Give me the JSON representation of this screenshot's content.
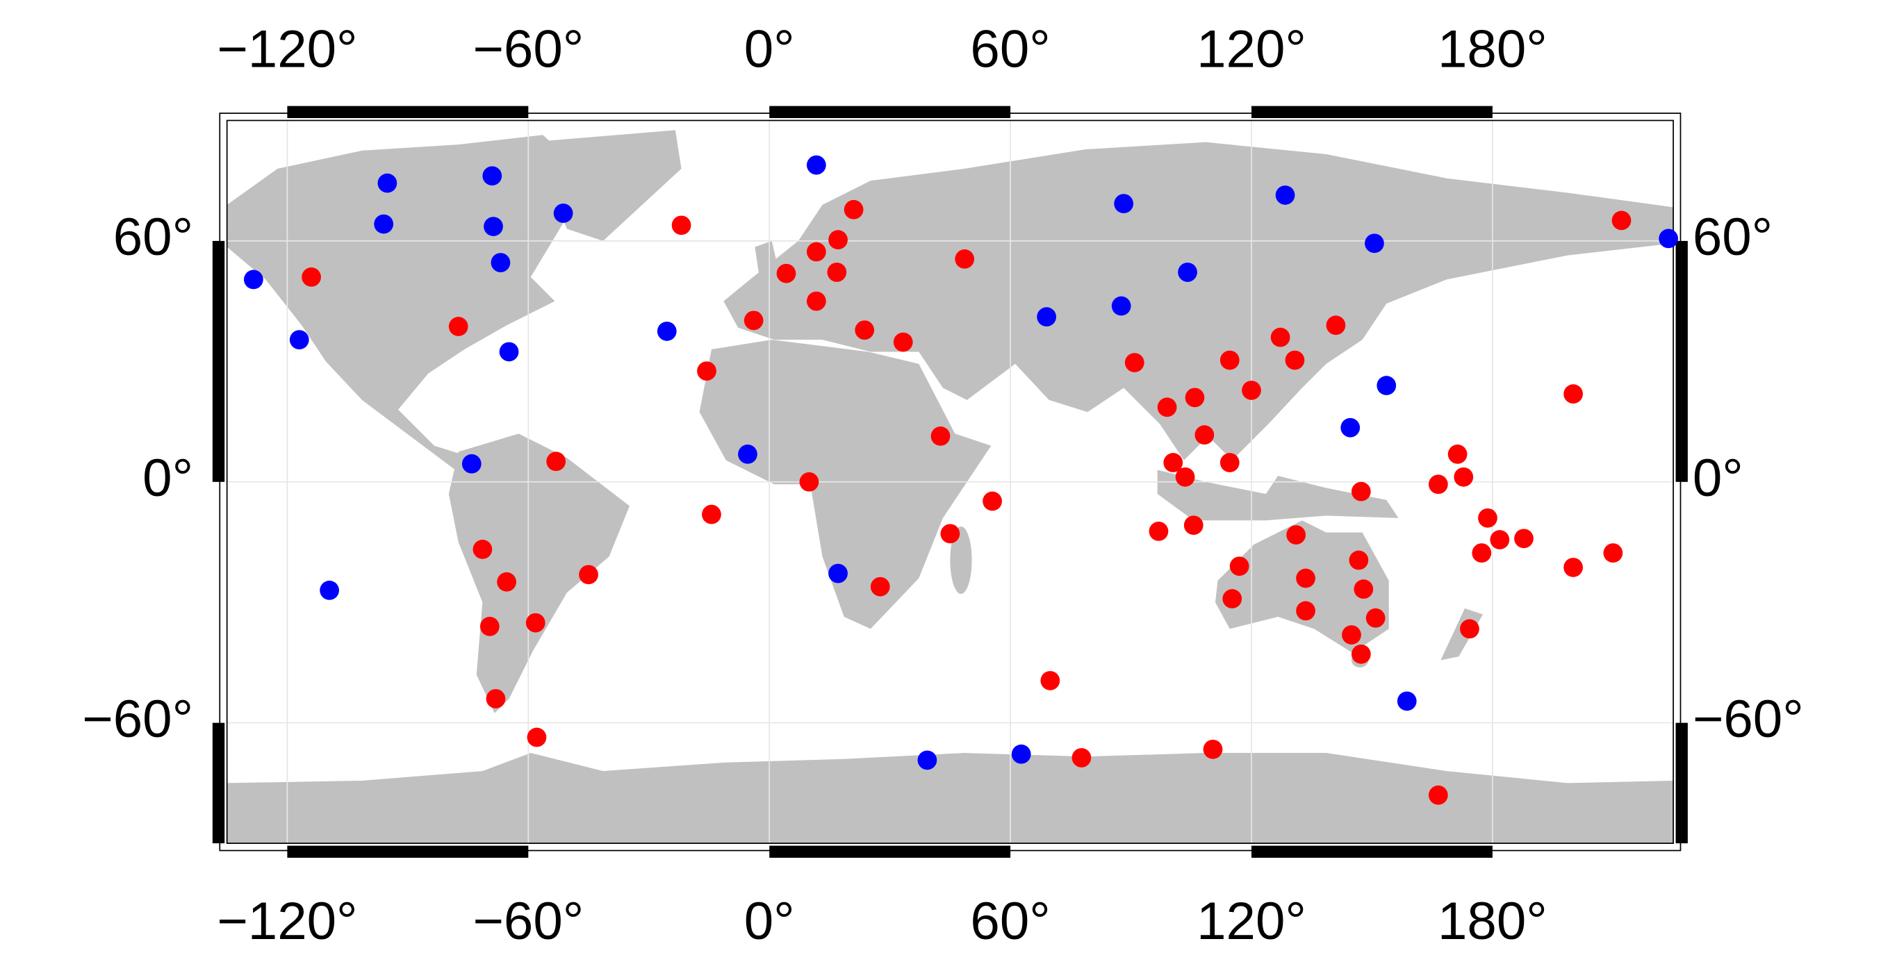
{
  "chart_data": {
    "type": "scatter",
    "xlim": [
      -135,
      225
    ],
    "ylim": [
      -90,
      90
    ],
    "xticks": [
      {
        "value": -120,
        "label": "−120°"
      },
      {
        "value": -60,
        "label": "−60°"
      },
      {
        "value": 0,
        "label": "0°"
      },
      {
        "value": 60,
        "label": "60°"
      },
      {
        "value": 120,
        "label": "120°"
      },
      {
        "value": 180,
        "label": "180°"
      }
    ],
    "yticks": [
      {
        "value": -60,
        "label": "−60°"
      },
      {
        "value": 0,
        "label": "0°"
      },
      {
        "value": 60,
        "label": "60°"
      }
    ],
    "grid": true,
    "series": [
      {
        "color": "#ff0000",
        "x": [
          -114,
          -77.4,
          -21.9,
          21,
          17.1,
          11.7,
          4.2,
          16.8,
          11.7,
          -3.9,
          23.7,
          33.3,
          48.6,
          -15.6,
          42.6,
          9.9,
          -14.4,
          45,
          55.5,
          27.6,
          -53.1,
          -71.4,
          -65.4,
          -45,
          -69.6,
          -58.2,
          -68.1,
          -57.9,
          69.9,
          77.7,
          110.4,
          166.5,
          90.9,
          127.2,
          141,
          114.6,
          130.8,
          99,
          105.9,
          120,
          108.3,
          100.5,
          103.5,
          114.6,
          96.9,
          105.6,
          147.3,
          131.1,
          117,
          115.2,
          133.5,
          133.5,
          146.7,
          147.9,
          150.9,
          144.9,
          147.3,
          166.5,
          171.3,
          172.8,
          178.8,
          177.3,
          181.8,
          187.8,
          174.3,
          200.1,
          200.1,
          210,
          212.1
        ],
        "values": [
          51,
          38.7,
          63.9,
          67.8,
          60.3,
          57.3,
          51.9,
          52.2,
          45,
          40.2,
          37.8,
          34.8,
          55.5,
          27.6,
          11.4,
          0,
          -8.1,
          -12.9,
          -4.8,
          -26.1,
          5.1,
          -16.8,
          -24.9,
          -23.1,
          -36,
          -35.1,
          -54,
          -63.6,
          -49.5,
          -68.7,
          -66.6,
          -78,
          29.7,
          36,
          39,
          30.3,
          30.3,
          18.6,
          21,
          22.8,
          11.7,
          4.8,
          1.2,
          4.8,
          -12.3,
          -10.8,
          -2.4,
          -13.2,
          -21,
          -29.1,
          -24,
          -32.1,
          -19.5,
          -26.7,
          -33.9,
          -38.1,
          -42.9,
          -0.6,
          6.9,
          1.2,
          -9,
          -17.7,
          -14.4,
          -14.1,
          -36.6,
          21.9,
          -21.3,
          -17.7,
          65.1
        ]
      },
      {
        "color": "#0000ff",
        "x": [
          -128.4,
          -95.1,
          -69,
          -96,
          -68.7,
          -51.3,
          -66.9,
          -117,
          -64.8,
          -74.1,
          -109.5,
          -25.5,
          11.7,
          -5.4,
          17.1,
          39.3,
          62.7,
          69,
          88.2,
          87.6,
          104.1,
          128.4,
          150.6,
          153.6,
          144.6,
          158.7,
          223.8
        ],
        "values": [
          50.4,
          74.4,
          76.2,
          64.2,
          63.6,
          66.9,
          54.6,
          35.4,
          32.4,
          4.5,
          -27,
          37.5,
          78.9,
          6.9,
          -22.8,
          -69.3,
          -67.8,
          41.1,
          69.3,
          43.8,
          52.2,
          71.4,
          59.4,
          24,
          13.5,
          -54.6,
          60.6
        ]
      }
    ]
  }
}
